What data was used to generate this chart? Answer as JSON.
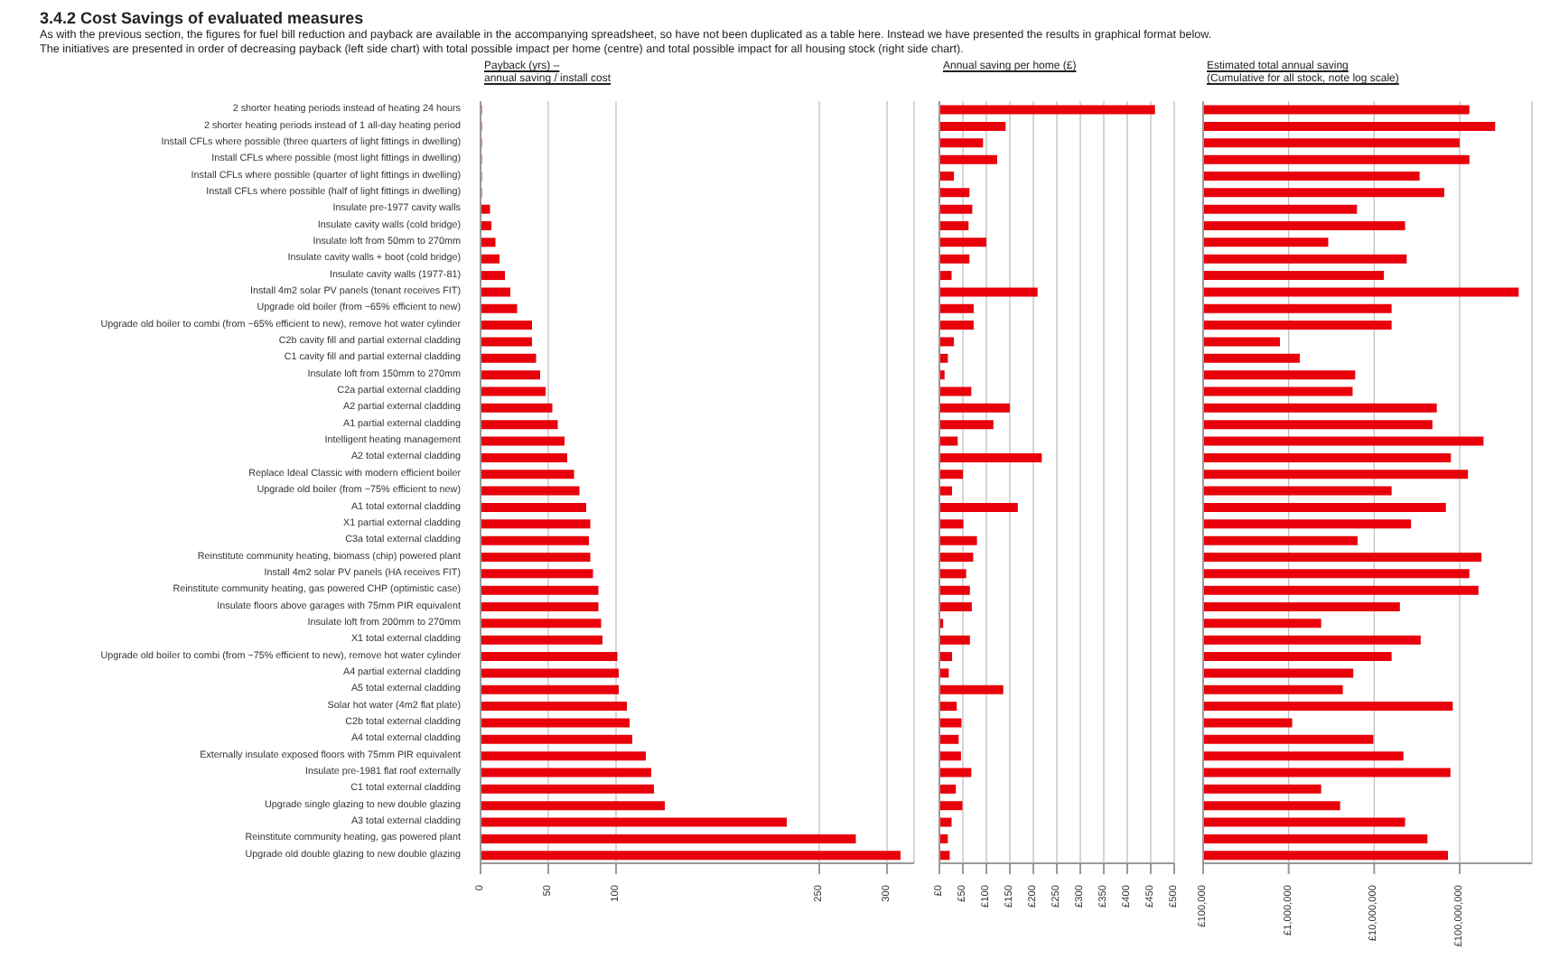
{
  "chart_data": [
    {
      "type": "bar",
      "orientation": "horizontal",
      "title": "Payback (yrs) –",
      "subtitle": "annual saving / install cost",
      "annotations": [
        "3.4.2   Cost Savings of evaluated measures",
        "As with the previous section, the figures for fuel bill reduction and payback are available in the accompanying spreadsheet, so have not been duplicated as a table here. Instead we have presented the results in graphical format below.",
        "The initiatives are presented in order of decreasing payback (left side chart) with total possible impact per home (centre) and total possible impact for all housing stock (right side chart)."
      ],
      "categories": [
        "2 shorter heating periods instead of heating 24 hours",
        "2 shorter heating periods instead of 1 all-day heating period",
        "Install CFLs where possible (three quarters of light fittings in dwelling)",
        "Install CFLs where possible (most light fittings in dwelling)",
        "Install CFLs where possible (quarter of light fittings in dwelling)",
        "Install CFLs where possible (half of light fittings in dwelling)",
        "Insulate pre-1977 cavity walls",
        "Insulate cavity walls (cold bridge)",
        "Insulate loft from 50mm to 270mm",
        "Insulate cavity walls + boot (cold bridge)",
        "Insulate cavity walls (1977-81)",
        "Install 4m2 solar PV panels (tenant receives FIT)",
        "Upgrade old boiler (from ~65% efficient to new)",
        "Upgrade old boiler to combi (from ~65% efficient to new), remove hot water cylinder",
        "C2b cavity fill and partial external cladding",
        "C1 cavity fill and partial external cladding",
        "Insulate loft from 150mm to 270mm",
        "C2a partial external cladding",
        "A2 partial external cladding",
        "A1 partial external cladding",
        "Intelligent heating management",
        "A2 total external cladding",
        "Replace Ideal Classic with modern efficient boiler",
        "Upgrade old boiler (from ~75% efficient to new)",
        "A1 total external cladding",
        "X1 partial external cladding",
        "C3a total external cladding",
        "Reinstitute community heating, biomass (chip) powered plant",
        "Install 4m2 solar PV panels (HA receives FIT)",
        "Reinstitute community heating, gas powered CHP (optimistic case)",
        "Insulate floors above garages with 75mm PIR equivalent",
        "Insulate loft from 200mm to 270mm",
        "X1 total external cladding",
        "Upgrade old boiler to combi (from ~75% efficient to new), remove hot water cylinder",
        "A4 partial external cladding",
        "A5 total external cladding",
        "Solar hot water (4m2 flat plate)",
        "C2b total external cladding",
        "A4 total external cladding",
        "Externally insulate exposed floors with 75mm PIR equivalent",
        "Insulate pre-1981 flat roof externally",
        "C1 total external cladding",
        "Upgrade single glazing to new double glazing",
        "A3 total external cladding",
        "Reinstitute community heating, gas powered plant",
        "Upgrade old double glazing to new double glazing"
      ],
      "values": [
        1,
        1,
        1,
        1,
        1,
        1,
        7,
        8,
        11,
        14,
        18,
        22,
        27,
        38,
        38,
        41,
        44,
        48,
        53,
        57,
        62,
        64,
        69,
        73,
        78,
        81,
        80,
        81,
        83,
        87,
        87,
        89,
        90,
        101,
        102,
        102,
        108,
        110,
        112,
        122,
        126,
        128,
        136,
        226,
        277,
        310
      ],
      "color": "#e8000b",
      "xlim": [
        0,
        320
      ],
      "xticks": [
        0,
        50,
        100,
        250,
        300
      ],
      "grid": "x"
    },
    {
      "type": "bar",
      "orientation": "horizontal",
      "title": "Annual saving per home (£)",
      "tick_labels": "x",
      "categories": [
        null,
        null,
        null,
        null,
        null,
        null,
        null,
        null,
        null,
        null,
        null,
        null,
        null,
        null,
        null,
        null,
        null,
        null,
        null,
        null,
        null,
        null,
        null,
        null,
        null,
        null,
        null,
        null,
        null,
        null,
        null,
        null,
        null,
        null,
        null,
        null,
        null,
        null,
        null,
        null,
        null,
        null,
        null,
        null,
        null,
        null
      ],
      "values": [
        459,
        141,
        93,
        123,
        31,
        64,
        70,
        62,
        100,
        64,
        26,
        209,
        73,
        73,
        31,
        18,
        11,
        68,
        150,
        115,
        39,
        218,
        50,
        27,
        167,
        51,
        80,
        72,
        57,
        65,
        69,
        8,
        65,
        27,
        20,
        136,
        37,
        47,
        41,
        46,
        68,
        35,
        49,
        26,
        18,
        22
      ],
      "color": "#e8000b",
      "xlim": [
        0,
        500
      ],
      "xticks": [
        {
          "value": 0,
          "label": "£0"
        },
        {
          "value": 50,
          "label": "£50"
        },
        {
          "value": 100,
          "label": "£100"
        },
        {
          "value": 150,
          "label": "£150"
        },
        {
          "value": 200,
          "label": "£200"
        },
        {
          "value": 250,
          "label": "£250"
        },
        {
          "value": 300,
          "label": "£300"
        },
        {
          "value": 350,
          "label": "£350"
        },
        {
          "value": 400,
          "label": "£400"
        },
        {
          "value": 450,
          "label": "£450"
        },
        {
          "value": 500,
          "label": "£500"
        }
      ],
      "grid": "x"
    },
    {
      "type": "bar",
      "orientation": "horizontal",
      "title": "Estimated total annual saving",
      "subtitle": "(Cumulative for all stock, note log scale)",
      "tick_labels": "x",
      "log": "x",
      "categories": [
        null,
        null,
        null,
        null,
        null,
        null,
        null,
        null,
        null,
        null,
        null,
        null,
        null,
        null,
        null,
        null,
        null,
        null,
        null,
        null,
        null,
        null,
        null,
        null,
        null,
        null,
        null,
        null,
        null,
        null,
        null,
        null,
        null,
        null,
        null,
        null,
        null,
        null,
        null,
        null,
        null,
        null,
        null,
        null,
        null,
        null
      ],
      "values": [
        130000000,
        260000000,
        100000000,
        130000000,
        34000000,
        66000000,
        6300000,
        23000000,
        2900000,
        24000000,
        13000000,
        490000000,
        16000000,
        16000000,
        790000,
        1350000,
        6000000,
        5600000,
        54000000,
        48000000,
        190000000,
        79000000,
        125000000,
        16000000,
        69000000,
        27000000,
        6400000,
        180000000,
        130000000,
        166000000,
        20000000,
        2400000,
        35000000,
        16000000,
        5700000,
        4300000,
        83000000,
        1100000,
        9800000,
        22000000,
        78000000,
        2400000,
        4000000,
        23000000,
        42000000,
        73000000
      ],
      "color": "#e8000b",
      "xlim": [
        100000,
        700000000
      ],
      "xticks": [
        {
          "value": 100000,
          "label": "£100,000"
        },
        {
          "value": 1000000,
          "label": "£1,000,000"
        },
        {
          "value": 10000000,
          "label": "£10,000,000"
        },
        {
          "value": 100000000,
          "label": "£100,000,000"
        }
      ],
      "grid": "x"
    }
  ]
}
